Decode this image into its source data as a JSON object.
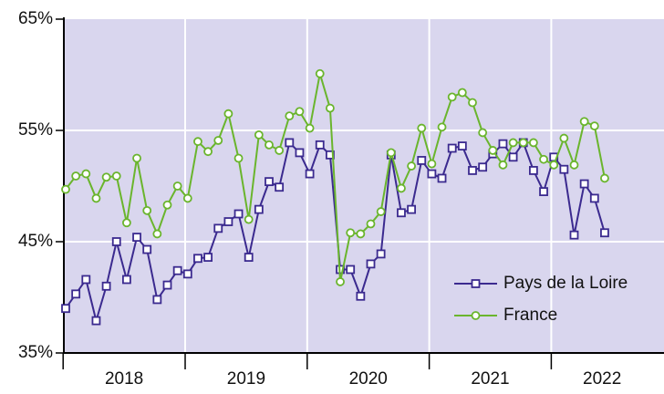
{
  "chart_data": {
    "type": "line",
    "categories": [
      null,
      null,
      null,
      null,
      null,
      null,
      "2018",
      null,
      null,
      null,
      null,
      null,
      null,
      null,
      null,
      null,
      null,
      null,
      "2019",
      null,
      null,
      null,
      null,
      null,
      null,
      null,
      null,
      null,
      null,
      null,
      "2020",
      null,
      null,
      null,
      null,
      null,
      null,
      null,
      null,
      null,
      null,
      null,
      "2021",
      null,
      null,
      null,
      null,
      null,
      null,
      null,
      null,
      null,
      null,
      "2022"
    ],
    "series": [
      {
        "name": "Pays de la Loire",
        "color": "#3b2a8f",
        "values": [
          39.0,
          40.3,
          41.6,
          37.9,
          41.0,
          45.0,
          41.6,
          45.4,
          44.3,
          39.8,
          41.1,
          42.4,
          42.1,
          43.5,
          43.6,
          46.2,
          46.8,
          47.5,
          43.6,
          47.9,
          50.4,
          49.9,
          53.9,
          53.0,
          51.1,
          53.7,
          52.8,
          42.5,
          42.5,
          40.1,
          43.0,
          43.9,
          52.8,
          47.6,
          47.9,
          52.3,
          51.1,
          50.7,
          53.4,
          53.6,
          51.4,
          51.7,
          52.9,
          53.8,
          52.6,
          53.9,
          51.4,
          49.5,
          52.6,
          51.5,
          45.6,
          50.2,
          48.9,
          45.8
        ]
      },
      {
        "name": "France",
        "color": "#6ab52d",
        "values": [
          49.7,
          50.9,
          51.1,
          48.9,
          50.8,
          50.9,
          46.7,
          52.5,
          47.8,
          45.7,
          48.3,
          50.0,
          48.9,
          54.0,
          53.1,
          54.1,
          56.5,
          52.5,
          47.0,
          54.6,
          53.7,
          53.2,
          56.3,
          56.7,
          55.2,
          60.1,
          57.0,
          41.4,
          45.8,
          45.7,
          46.6,
          47.7,
          53.0,
          49.8,
          51.8,
          55.2,
          52.0,
          55.3,
          58.0,
          58.4,
          57.5,
          54.8,
          53.2,
          51.9,
          53.9,
          53.9,
          53.9,
          52.4,
          51.9,
          54.3,
          51.9,
          55.8,
          55.4,
          50.7
        ]
      }
    ],
    "ylim": [
      35,
      65
    ],
    "yticks": [
      {
        "value": 35,
        "label": "35%"
      },
      {
        "value": 45,
        "label": "45%"
      },
      {
        "value": 55,
        "label": "55%"
      },
      {
        "value": 65,
        "label": "65%"
      }
    ],
    "grid": true,
    "legend": "lower right"
  }
}
